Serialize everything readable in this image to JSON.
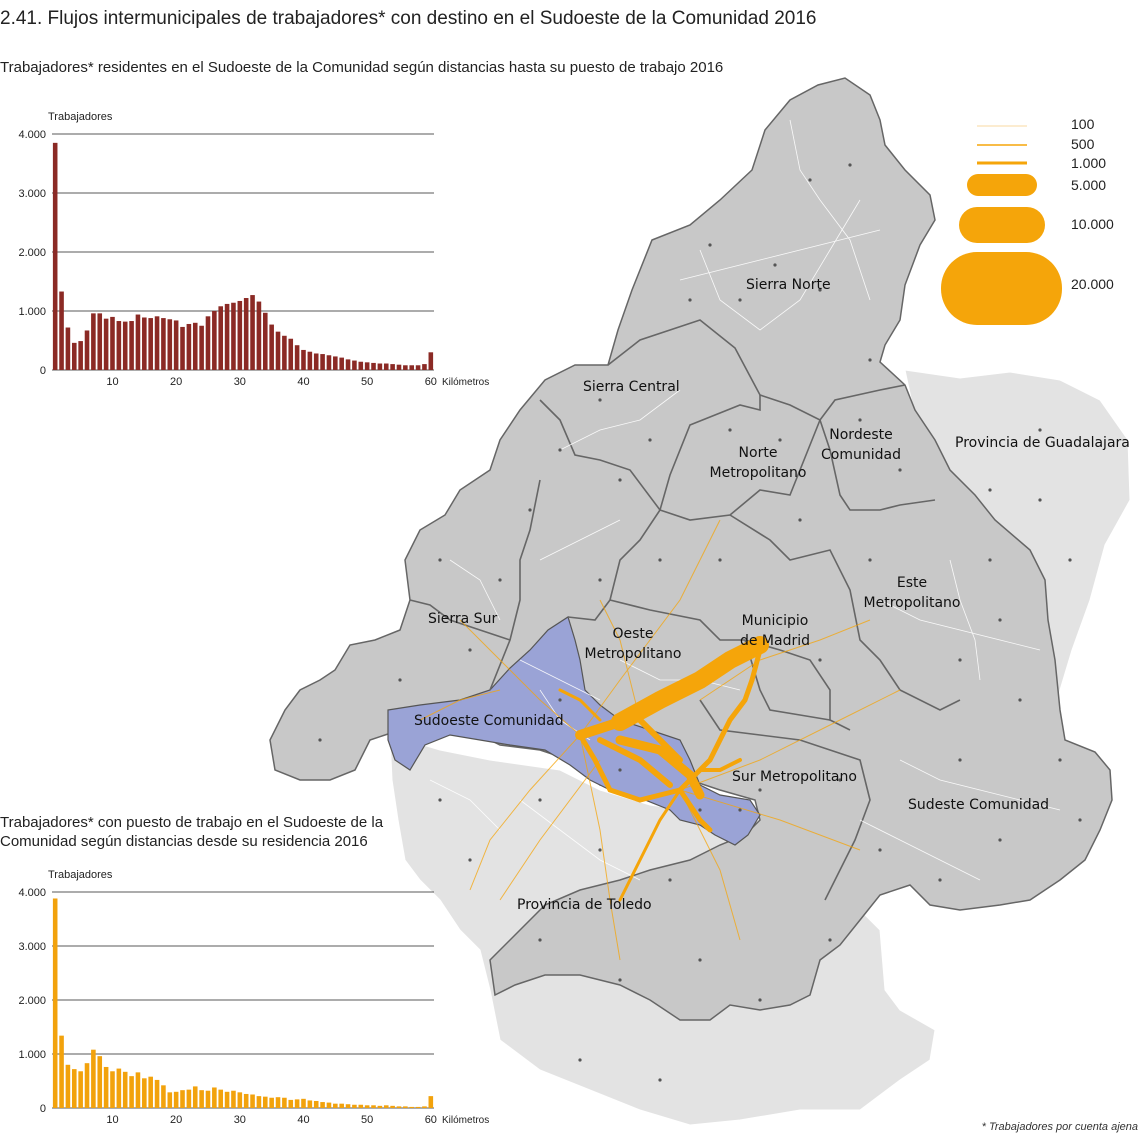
{
  "title": "2.41. Flujos intermunicipales de trabajadores* con destino en el Sudoeste de la Comunidad 2016",
  "footnote": "* Trabajadores por cuenta ajena",
  "colors": {
    "bar_residentes": "#8b2a25",
    "bar_destino": "#f2a20c",
    "flow": "#f5a50a",
    "region_cam": "#c8c8c8",
    "region_outside": "#e3e3e3",
    "region_highlight": "#9aa3d6",
    "border": "#666666"
  },
  "legend": {
    "items": [
      {
        "label": "100",
        "value": 100
      },
      {
        "label": "500",
        "value": 500
      },
      {
        "label": "1.000",
        "value": 1000
      },
      {
        "label": "5.000",
        "value": 5000
      },
      {
        "label": "10.000",
        "value": 10000
      },
      {
        "label": "20.000",
        "value": 20000
      }
    ]
  },
  "regions": {
    "sierra_norte": "Sierra Norte",
    "sierra_central": "Sierra Central",
    "norte_metro_1": "Norte",
    "norte_metro_2": "Metropolitano",
    "nordeste_1": "Nordeste",
    "nordeste_2": "Comunidad",
    "guadalajara": "Provincia de Guadalajara",
    "este_1": "Este",
    "este_2": "Metropolitano",
    "sierra_sur": "Sierra Sur",
    "oeste_1": "Oeste",
    "oeste_2": "Metropolitano",
    "madrid_1": "Municipio",
    "madrid_2": "de Madrid",
    "sudoeste": "Sudoeste Comunidad",
    "sur_metro": "Sur Metropolitano",
    "sudeste": "Sudeste Comunidad",
    "toledo": "Provincia de Toledo"
  },
  "chart_data": [
    {
      "type": "bar",
      "title": "Trabajadores* residentes en el Sudoeste de la Comunidad según distancias hasta su puesto de trabajo 2016",
      "ylabel": "Trabajadores",
      "xlabel": "Kilómetros",
      "ylim": [
        0,
        4000
      ],
      "yticks": [
        "0",
        "1.000",
        "2.000",
        "3.000",
        "4.000"
      ],
      "xticks": [
        "10",
        "20",
        "30",
        "40",
        "50",
        "60"
      ],
      "grid": true,
      "x": [
        1,
        2,
        3,
        4,
        5,
        6,
        7,
        8,
        9,
        10,
        11,
        12,
        13,
        14,
        15,
        16,
        17,
        18,
        19,
        20,
        21,
        22,
        23,
        24,
        25,
        26,
        27,
        28,
        29,
        30,
        31,
        32,
        33,
        34,
        35,
        36,
        37,
        38,
        39,
        40,
        41,
        42,
        43,
        44,
        45,
        46,
        47,
        48,
        49,
        50,
        51,
        52,
        53,
        54,
        55,
        56,
        57,
        58,
        59,
        60
      ],
      "values": [
        3850,
        1330,
        720,
        460,
        490,
        670,
        960,
        960,
        870,
        900,
        830,
        820,
        830,
        940,
        890,
        880,
        910,
        880,
        860,
        840,
        730,
        780,
        800,
        750,
        910,
        1000,
        1080,
        1120,
        1140,
        1170,
        1220,
        1270,
        1160,
        970,
        770,
        650,
        580,
        530,
        420,
        340,
        310,
        280,
        270,
        250,
        230,
        210,
        180,
        160,
        140,
        130,
        120,
        110,
        110,
        100,
        90,
        80,
        80,
        80,
        100,
        300
      ]
    },
    {
      "type": "bar",
      "title": "Trabajadores* con puesto de trabajo en el Sudoeste de la Comunidad según distancias desde su residencia 2016",
      "ylabel": "Trabajadores",
      "xlabel": "Kilómetros",
      "ylim": [
        0,
        4000
      ],
      "yticks": [
        "0",
        "1.000",
        "2.000",
        "3.000",
        "4.000"
      ],
      "xticks": [
        "10",
        "20",
        "30",
        "40",
        "50",
        "60"
      ],
      "grid": true,
      "x": [
        1,
        2,
        3,
        4,
        5,
        6,
        7,
        8,
        9,
        10,
        11,
        12,
        13,
        14,
        15,
        16,
        17,
        18,
        19,
        20,
        21,
        22,
        23,
        24,
        25,
        26,
        27,
        28,
        29,
        30,
        31,
        32,
        33,
        34,
        35,
        36,
        37,
        38,
        39,
        40,
        41,
        42,
        43,
        44,
        45,
        46,
        47,
        48,
        49,
        50,
        51,
        52,
        53,
        54,
        55,
        56,
        57,
        58,
        59,
        60
      ],
      "values": [
        3880,
        1340,
        800,
        720,
        680,
        830,
        1080,
        960,
        760,
        680,
        730,
        670,
        590,
        660,
        550,
        580,
        520,
        420,
        290,
        300,
        330,
        340,
        400,
        330,
        320,
        380,
        340,
        300,
        320,
        290,
        260,
        250,
        220,
        210,
        190,
        200,
        190,
        150,
        160,
        170,
        140,
        130,
        110,
        100,
        80,
        80,
        70,
        60,
        60,
        50,
        50,
        40,
        50,
        40,
        30,
        30,
        20,
        20,
        30,
        220
      ]
    }
  ]
}
